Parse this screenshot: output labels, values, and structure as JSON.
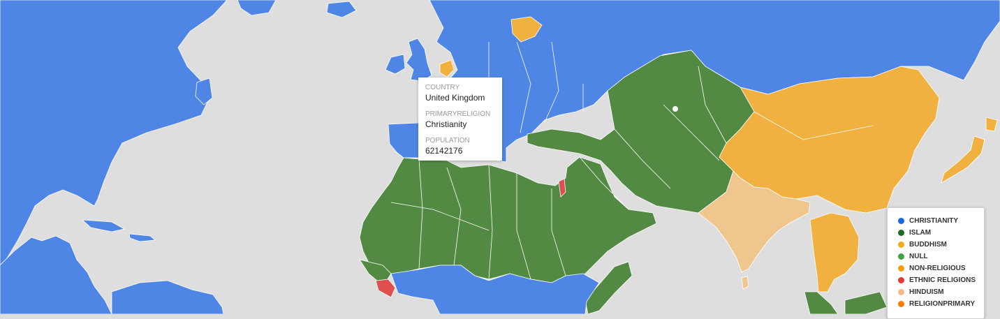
{
  "colors": {
    "ocean": "#dedede",
    "christianity": "#4f86e6",
    "islam": "#528a44",
    "buddhism": "#f1b140",
    "ethnic": "#df4f4f",
    "hinduism": "#f0c68f"
  },
  "tooltip": {
    "country_label": "COUNTRY",
    "country_value": "United Kingdom",
    "religion_label": "PRIMARYRELIGION",
    "religion_value": "Christianity",
    "population_label": "POPULATION",
    "population_value": "62142176"
  },
  "legend": [
    {
      "label": "CHRISTIANITY",
      "color": "#1a66e0"
    },
    {
      "label": "ISLAM",
      "color": "#1f6b24"
    },
    {
      "label": "BUDDHISM",
      "color": "#f0ac18"
    },
    {
      "label": "NULL",
      "color": "#43a047"
    },
    {
      "label": "NON-RELIGIOUS",
      "color": "#f59f00"
    },
    {
      "label": "ETHNIC RELIGIONS",
      "color": "#e53935"
    },
    {
      "label": "HINDUISM",
      "color": "#f4b98a"
    },
    {
      "label": "RELIGIONPRIMARY",
      "color": "#f57c00"
    }
  ]
}
